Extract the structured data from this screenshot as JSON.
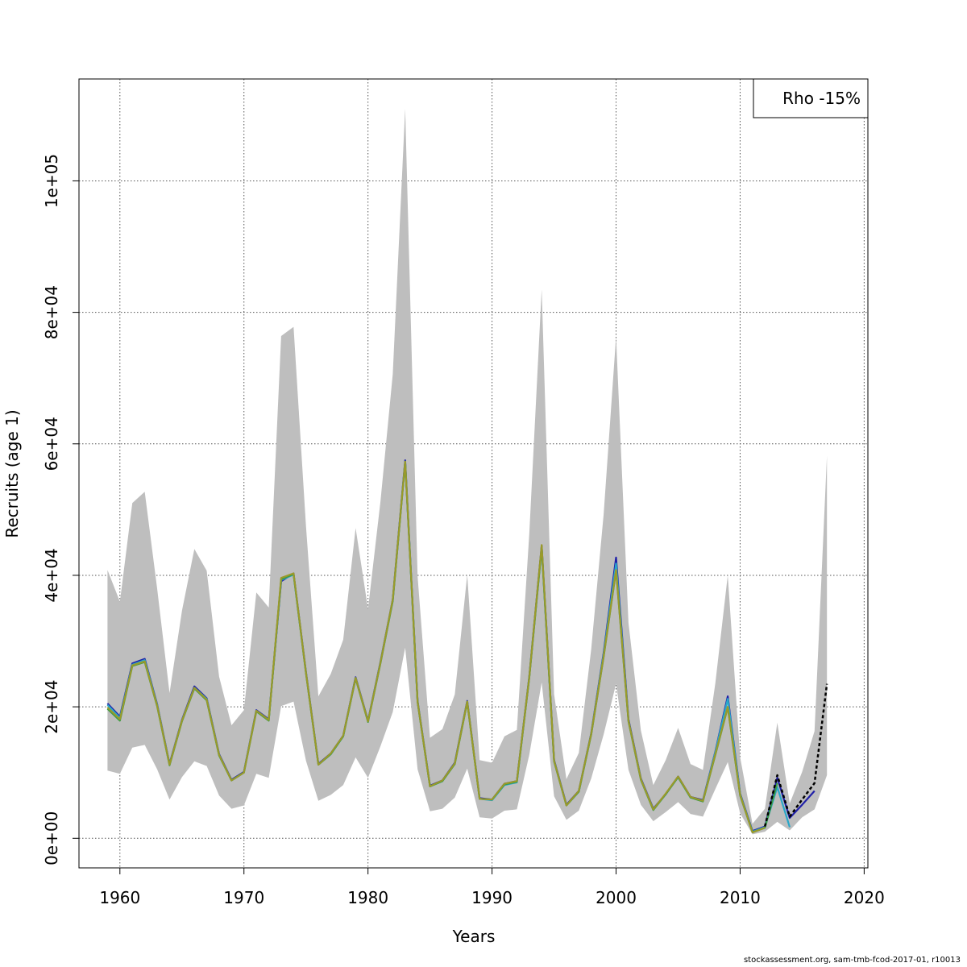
{
  "chart_data": {
    "type": "line",
    "xlabel": "Years",
    "ylabel": "Recruits (age 1)",
    "xlim": [
      1956.7,
      2020.3
    ],
    "ylim": [
      -4500,
      115500
    ],
    "x_ticks": [
      1960,
      1970,
      1980,
      1990,
      2000,
      2010,
      2020
    ],
    "y_ticks": [
      0,
      20000,
      40000,
      60000,
      80000,
      100000
    ],
    "y_tick_labels": [
      "0e+00",
      "2e+04",
      "4e+04",
      "6e+04",
      "8e+04",
      "1e+05"
    ],
    "grid": true,
    "legend": {
      "position": "top-right",
      "label": "Rho -15%"
    },
    "confidence_band": {
      "x": [
        1959,
        1960,
        1961,
        1962,
        1963,
        1964,
        1965,
        1966,
        1967,
        1968,
        1969,
        1970,
        1971,
        1972,
        1973,
        1974,
        1975,
        1976,
        1977,
        1978,
        1979,
        1980,
        1981,
        1982,
        1983,
        1984,
        1985,
        1986,
        1987,
        1988,
        1989,
        1990,
        1991,
        1992,
        1993,
        1994,
        1995,
        1996,
        1997,
        1998,
        1999,
        2000,
        2001,
        2002,
        2003,
        2004,
        2005,
        2006,
        2007,
        2008,
        2009,
        2010,
        2011,
        2012,
        2013,
        2014,
        2015,
        2016,
        2017
      ],
      "lower": [
        10300,
        9800,
        13800,
        14200,
        10500,
        5900,
        9300,
        11700,
        11000,
        6500,
        4500,
        5000,
        9800,
        9200,
        20100,
        20800,
        11800,
        5700,
        6600,
        8100,
        12300,
        9200,
        14000,
        19200,
        29000,
        10500,
        4100,
        4500,
        6200,
        10600,
        3200,
        3000,
        4200,
        4400,
        12700,
        23700,
        6400,
        2800,
        4200,
        9100,
        15800,
        23500,
        10400,
        5100,
        2600,
        4000,
        5500,
        3700,
        3300,
        7500,
        11600,
        3800,
        600,
        1000,
        2500,
        1200,
        3200,
        4400,
        9600
      ],
      "upper": [
        40800,
        36000,
        51000,
        52700,
        38000,
        22100,
        34600,
        44000,
        40700,
        24600,
        17200,
        19500,
        37400,
        35100,
        76400,
        77800,
        47500,
        21600,
        25000,
        30200,
        47200,
        34900,
        51200,
        70600,
        111000,
        39900,
        15300,
        16600,
        21900,
        40100,
        11900,
        11500,
        15500,
        16500,
        46300,
        83500,
        21900,
        9000,
        13000,
        28800,
        49300,
        76300,
        32800,
        16400,
        8100,
        11900,
        16800,
        11300,
        10400,
        23600,
        40000,
        12300,
        2200,
        4500,
        17600,
        5300,
        10100,
        16300,
        58200
      ]
    },
    "series": [
      {
        "color": "#1f1fa8",
        "x": [
          1959,
          1960,
          1961,
          1962,
          1963,
          1964,
          1965,
          1966,
          1967,
          1968,
          1969,
          1970,
          1971,
          1972,
          1973,
          1974,
          1975,
          1976,
          1977,
          1978,
          1979,
          1980,
          1981,
          1982,
          1983,
          1984,
          1985,
          1986,
          1987,
          1988,
          1989,
          1990,
          1991,
          1992,
          1993,
          1994,
          1995,
          1996,
          1997,
          1998,
          1999,
          2000,
          2001,
          2002,
          2003,
          2004,
          2005,
          2006,
          2007,
          2008,
          2009,
          2010,
          2011,
          2012,
          2013,
          2014,
          2015,
          2016
        ],
        "values": [
          20500,
          18500,
          26600,
          27300,
          20400,
          11300,
          18000,
          23100,
          21300,
          12800,
          8900,
          10100,
          19500,
          18100,
          39100,
          40300,
          25300,
          11300,
          12900,
          15600,
          24500,
          17900,
          26800,
          36300,
          57500,
          20900,
          8000,
          8800,
          11500,
          20900,
          6100,
          5900,
          8300,
          8700,
          24600,
          44500,
          11900,
          5100,
          7200,
          16000,
          28200,
          42700,
          18100,
          9100,
          4500,
          6700,
          9400,
          6300,
          5800,
          13200,
          21600,
          6800,
          1100,
          1800,
          9200,
          3100,
          5100,
          7200
        ]
      },
      {
        "color": "#2aa7c9",
        "x": [
          1959,
          1960,
          1961,
          1962,
          1963,
          1964,
          1965,
          1966,
          1967,
          1968,
          1969,
          1970,
          1971,
          1972,
          1973,
          1974,
          1975,
          1976,
          1977,
          1978,
          1979,
          1980,
          1981,
          1982,
          1983,
          1984,
          1985,
          1986,
          1987,
          1988,
          1989,
          1990,
          1991,
          1992,
          1993,
          1994,
          1995,
          1996,
          1997,
          1998,
          1999,
          2000,
          2001,
          2002,
          2003,
          2004,
          2005,
          2006,
          2007,
          2008,
          2009,
          2010,
          2011,
          2012,
          2013,
          2014
        ],
        "values": [
          20300,
          18300,
          26400,
          27100,
          20300,
          11200,
          17900,
          22900,
          21200,
          12700,
          8800,
          10000,
          19400,
          18000,
          39300,
          40100,
          25200,
          11200,
          12800,
          15500,
          24400,
          17800,
          26700,
          36200,
          57300,
          20800,
          7900,
          8700,
          11400,
          20800,
          6000,
          5800,
          8100,
          8500,
          24500,
          44300,
          11800,
          5000,
          7100,
          15900,
          28000,
          41800,
          17900,
          9000,
          4400,
          6700,
          9300,
          6200,
          5700,
          13100,
          21200,
          6700,
          1000,
          1700,
          7800,
          1700
        ]
      },
      {
        "color": "#3a9b47",
        "x": [
          1959,
          1960,
          1961,
          1962,
          1963,
          1964,
          1965,
          1966,
          1967,
          1968,
          1969,
          1970,
          1971,
          1972,
          1973,
          1974,
          1975,
          1976,
          1977,
          1978,
          1979,
          1980,
          1981,
          1982,
          1983,
          1984,
          1985,
          1986,
          1987,
          1988,
          1989,
          1990,
          1991,
          1992,
          1993,
          1994,
          1995,
          1996,
          1997,
          1998,
          1999,
          2000,
          2001,
          2002,
          2003,
          2004,
          2005,
          2006,
          2007,
          2008,
          2009,
          2010,
          2011,
          2012,
          2013
        ],
        "values": [
          19700,
          17900,
          26200,
          26800,
          20100,
          11100,
          17800,
          22800,
          21000,
          12600,
          8800,
          10000,
          19300,
          17900,
          39400,
          40200,
          25100,
          11200,
          12800,
          15500,
          24300,
          17700,
          26600,
          36100,
          57200,
          20700,
          7900,
          8700,
          11300,
          20700,
          6000,
          5900,
          8200,
          8600,
          24400,
          44200,
          11700,
          5000,
          7100,
          15800,
          27600,
          40700,
          17800,
          8900,
          4300,
          6700,
          9300,
          6200,
          5600,
          12700,
          19900,
          6500,
          900,
          1600,
          8400
        ]
      },
      {
        "color": "#9a9a2a",
        "x": [
          1959,
          1960,
          1961,
          1962,
          1963,
          1964,
          1965,
          1966,
          1967,
          1968,
          1969,
          1970,
          1971,
          1972,
          1973,
          1974,
          1975,
          1976,
          1977,
          1978,
          1979,
          1980,
          1981,
          1982,
          1983,
          1984,
          1985,
          1986,
          1987,
          1988,
          1989,
          1990,
          1991,
          1992,
          1993,
          1994,
          1995,
          1996,
          1997,
          1998,
          1999,
          2000,
          2001,
          2002,
          2003,
          2004,
          2005,
          2006,
          2007,
          2008,
          2009,
          2010,
          2011,
          2012
        ],
        "values": [
          19900,
          18100,
          26300,
          26900,
          20200,
          11200,
          17900,
          22900,
          21100,
          12700,
          8800,
          10000,
          19400,
          18000,
          39600,
          40300,
          25200,
          11200,
          12900,
          15600,
          24400,
          17800,
          26700,
          36300,
          57300,
          20800,
          7900,
          8800,
          11400,
          20800,
          6000,
          5900,
          8300,
          8700,
          24500,
          44600,
          11800,
          5000,
          7200,
          15900,
          27700,
          40800,
          17900,
          9000,
          4400,
          6800,
          9400,
          6300,
          5700,
          12800,
          20000,
          6600,
          900,
          1600
        ]
      },
      {
        "color": "#000000",
        "dashed": true,
        "x": [
          2012,
          2013,
          2014,
          2015,
          2016,
          2017
        ],
        "values": [
          1800,
          9600,
          3300,
          5900,
          8400,
          23500
        ]
      }
    ]
  },
  "footer": {
    "credit": "stockassessment.org, sam-tmb-fcod-2017-01, r10013"
  }
}
